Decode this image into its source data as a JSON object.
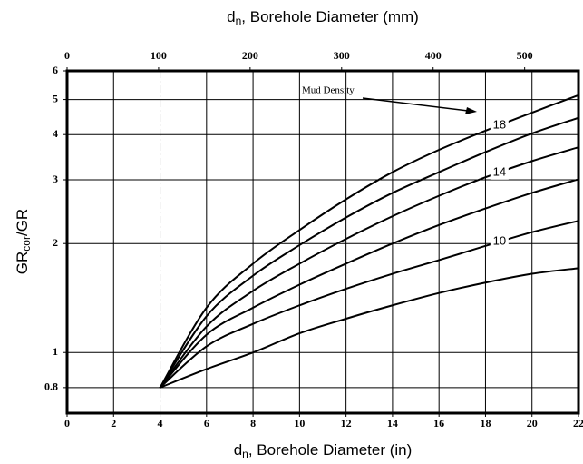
{
  "chart_data": {
    "type": "line",
    "x_label": {
      "symbol": "d",
      "subscript": "n",
      "text": ", Borehole Diameter (in)"
    },
    "x2_label": {
      "symbol": "d",
      "subscript": "n",
      "text": ", Borehole Diameter (mm)"
    },
    "y_label": {
      "symbol": "GR",
      "subscript": "cor",
      "text": "/GR"
    },
    "annotation": "Mud Density",
    "x": [
      4,
      6,
      8,
      10,
      12,
      14,
      16,
      18,
      20,
      22
    ],
    "series": [
      {
        "name": "18",
        "color": "#000000",
        "values": [
          0.8,
          1.33,
          1.76,
          2.18,
          2.65,
          3.15,
          3.63,
          4.1,
          4.6,
          5.14
        ]
      },
      {
        "color": "#000000",
        "values": [
          0.8,
          1.26,
          1.63,
          1.98,
          2.36,
          2.76,
          3.15,
          3.58,
          4.03,
          4.45
        ]
      },
      {
        "name": "14",
        "color": "#000000",
        "values": [
          0.8,
          1.18,
          1.48,
          1.76,
          2.06,
          2.38,
          2.71,
          3.05,
          3.38,
          3.69
        ]
      },
      {
        "color": "#000000",
        "values": [
          0.8,
          1.12,
          1.33,
          1.54,
          1.76,
          2.0,
          2.25,
          2.5,
          2.76,
          3.01
        ]
      },
      {
        "name": "10",
        "color": "#000000",
        "values": [
          0.8,
          1.04,
          1.2,
          1.35,
          1.5,
          1.65,
          1.8,
          1.97,
          2.15,
          2.31
        ]
      },
      {
        "color": "#000000",
        "values": [
          0.8,
          0.9,
          1.0,
          1.13,
          1.24,
          1.35,
          1.46,
          1.56,
          1.65,
          1.71
        ]
      }
    ],
    "xlim": [
      0,
      22
    ],
    "xticks": [
      0,
      2,
      4,
      6,
      8,
      10,
      12,
      14,
      16,
      18,
      20,
      22
    ],
    "x2lim": [
      0,
      558.8
    ],
    "x2ticks": [
      0,
      100,
      200,
      300,
      400,
      500
    ],
    "ylim": [
      0.68,
      6
    ],
    "yticks": [
      0.8,
      1,
      2,
      3,
      4,
      5,
      6
    ],
    "y_scale": "log",
    "grid": true,
    "reference_line_x": 4
  }
}
